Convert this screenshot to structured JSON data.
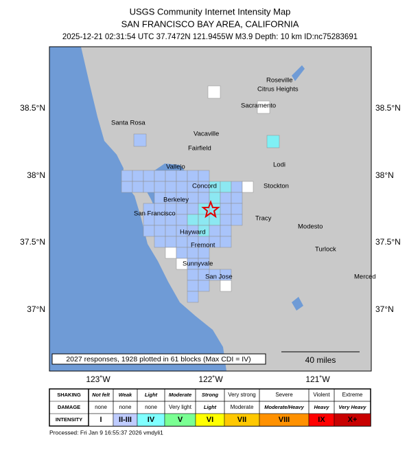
{
  "header": {
    "title": "USGS Community Internet Intensity Map",
    "subtitle": "SAN FRANCISCO BAY AREA, CALIFORNIA",
    "info": "2025-12-21 02:31:54 UTC 37.7472N 121.9455W M3.9 Depth: 10 km ID:nc75283691"
  },
  "map": {
    "lat_labels": [
      "38.5°N",
      "38°N",
      "37.5°N",
      "37°N"
    ],
    "lon_labels": [
      "123˚W",
      "122˚W",
      "121˚W"
    ],
    "cities": [
      "Roseville",
      "Citrus Heights",
      "Sacramento",
      "Santa Rosa",
      "Vacaville",
      "Fairfield",
      "Vallejo",
      "Lodi",
      "Concord",
      "Stockton",
      "Berkeley",
      "San Francisco",
      "Tracy",
      "Modesto",
      "Hayward",
      "Fremont",
      "Turlock",
      "Sunnyvale",
      "San Jose",
      "Merced"
    ],
    "note": "2027 responses, 1928 plotted in 61 blocks (Max CDI = IV)",
    "scale": "40 miles"
  },
  "legend": {
    "row_headers": [
      "SHAKING",
      "DAMAGE",
      "INTENSITY"
    ],
    "shaking": [
      "Not felt",
      "Weak",
      "Light",
      "Moderate",
      "Strong",
      "Very strong",
      "Severe",
      "Violent",
      "Extreme"
    ],
    "damage": [
      "none",
      "none",
      "none",
      "Very light",
      "Light",
      "Moderate",
      "Moderate/Heavy",
      "Heavy",
      "Very Heavy"
    ],
    "intensity": [
      "I",
      "II-III",
      "IV",
      "V",
      "VI",
      "VII",
      "VIII",
      "IX",
      "X+"
    ],
    "colors": [
      "#ffffff",
      "#bfccff",
      "#80ffff",
      "#7aff93",
      "#ffff00",
      "#ffc800",
      "#ff9100",
      "#ff0000",
      "#c80000"
    ]
  },
  "footer": "Processed: Fri Jan  9 16:55:37 2026 vmdyli1"
}
